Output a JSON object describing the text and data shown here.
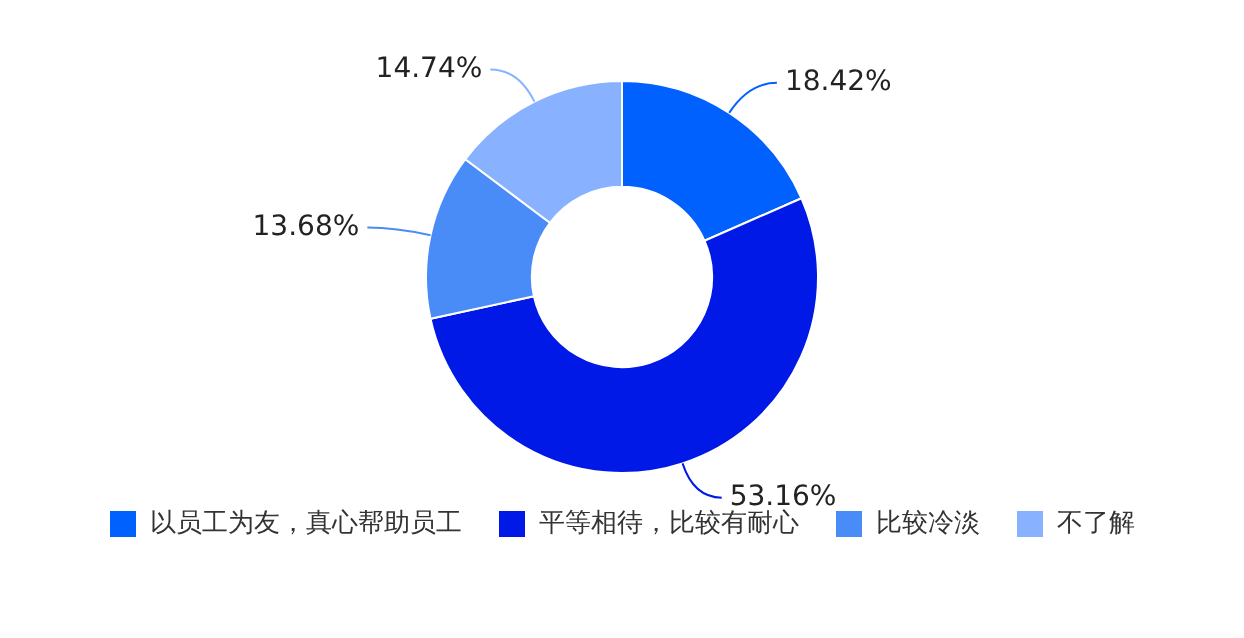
{
  "chart_data": {
    "type": "donut",
    "categories": [
      "以员工为友，真心帮助员工",
      "平等相待，比较有耐心",
      "比较冷淡",
      "不了解"
    ],
    "values": [
      18.42,
      53.16,
      13.68,
      14.74
    ],
    "value_labels": [
      "18.42%",
      "53.16%",
      "13.68%",
      "14.74%"
    ],
    "colors": [
      "#0061ff",
      "#0019e6",
      "#4a8cf7",
      "#88b2ff"
    ],
    "legend": "bottom"
  }
}
